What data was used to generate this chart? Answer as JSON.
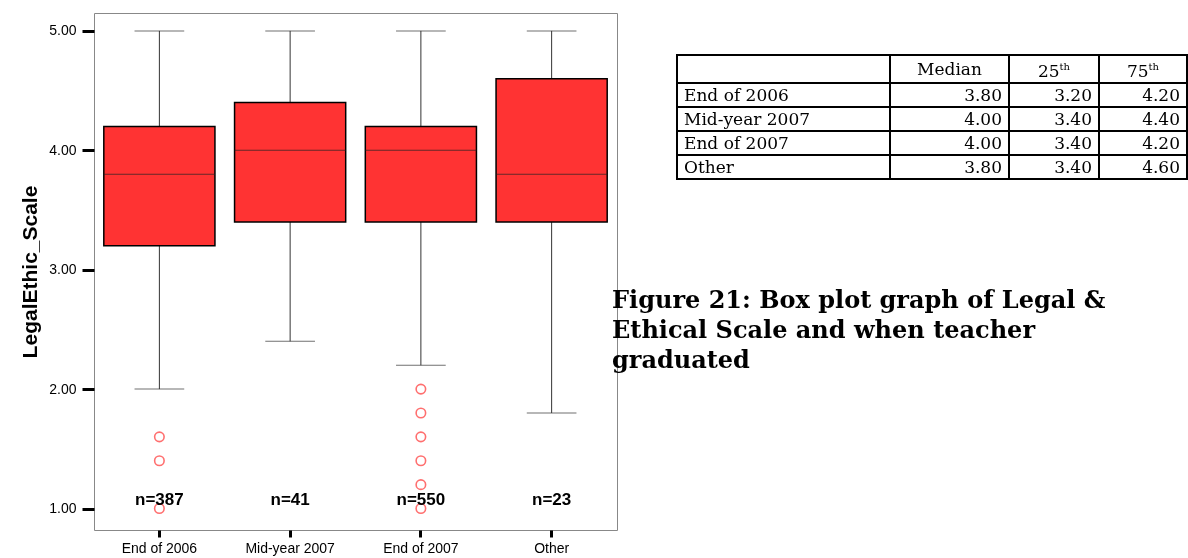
{
  "chart_data": [
    {
      "type": "box",
      "categories": [
        "End of 2006",
        "Mid-year 2007",
        "End of 2007",
        "Other"
      ],
      "series": [
        {
          "color": "#ff3333",
          "boxes": [
            {
              "low": 2.0,
              "q1": 3.2,
              "median": 3.8,
              "q3": 4.2,
              "high": 5.0,
              "outliers": [
                1.6,
                1.4,
                1.0
              ]
            },
            {
              "low": 2.4,
              "q1": 3.4,
              "median": 4.0,
              "q3": 4.4,
              "high": 5.0
            },
            {
              "low": 2.2,
              "q1": 3.4,
              "median": 4.0,
              "q3": 4.2,
              "high": 5.0,
              "outliers": [
                2.0,
                1.8,
                1.6,
                1.4,
                1.2,
                1.0
              ]
            },
            {
              "low": 1.8,
              "q1": 3.4,
              "median": 3.8,
              "q3": 4.6,
              "high": 5.0
            }
          ]
        }
      ],
      "ylabel": "LegalEthic_Scale",
      "ylim": [
        0.82,
        5.15
      ],
      "yticks": [
        {
          "value": 1,
          "label": "1.00"
        },
        {
          "value": 2,
          "label": "2.00"
        },
        {
          "value": 3,
          "label": "3.00"
        },
        {
          "value": 4,
          "label": "4.00"
        },
        {
          "value": 5,
          "label": "5.00"
        }
      ],
      "annotations": [
        "n=387",
        "n=41",
        "n=550",
        "n=23",
        "Figure 21: Box plot graph of Legal & Ethical Scale and when teacher graduated"
      ]
    },
    {
      "type": "other",
      "categories": [
        "Median",
        "25$^{th}$",
        "75$^{th}$"
      ],
      "y_categories": [
        "End of 2006",
        "Mid-year 2007",
        "End of 2007",
        "Other"
      ],
      "cell_labels": [
        [
          "3.80",
          "3.20",
          "4.20"
        ],
        [
          "4.00",
          "3.40",
          "4.40"
        ],
        [
          "4.00",
          "3.40",
          "4.20"
        ],
        [
          "3.80",
          "3.40",
          "4.60"
        ]
      ]
    }
  ]
}
